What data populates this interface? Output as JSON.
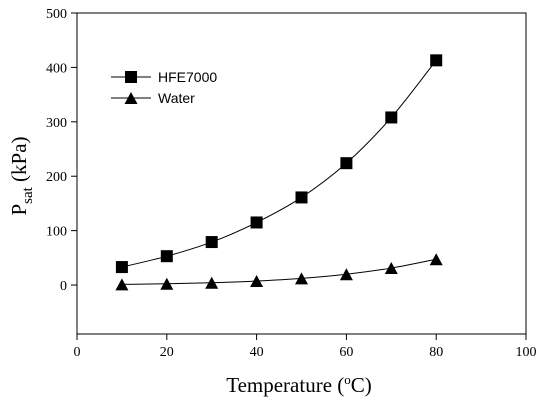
{
  "chart_data": {
    "type": "line",
    "xlabel": "Temperature",
    "xlabel_unit_prefix": "(",
    "xlabel_unit_sup": "o",
    "xlabel_unit_main": "C)",
    "ylabel_main": "P",
    "ylabel_sub": "sat",
    "ylabel_unit": " (kPa)",
    "xlim": [
      0,
      100
    ],
    "ylim": [
      -90,
      500
    ],
    "xticks": [
      0,
      20,
      40,
      60,
      80,
      100
    ],
    "yticks": [
      0,
      100,
      200,
      300,
      400,
      500
    ],
    "grid": false,
    "legend_position": "top-left",
    "series": [
      {
        "name": "HFE7000",
        "marker": "square",
        "x": [
          10,
          20,
          30,
          40,
          50,
          60,
          70,
          80
        ],
        "y": [
          33,
          53,
          79,
          115,
          161,
          224,
          308,
          413
        ]
      },
      {
        "name": "Water",
        "marker": "triangle",
        "x": [
          10,
          20,
          30,
          40,
          50,
          60,
          70,
          80
        ],
        "y": [
          1.2,
          2.3,
          4.2,
          7.4,
          12.3,
          19.9,
          31.2,
          47.4
        ]
      }
    ]
  }
}
